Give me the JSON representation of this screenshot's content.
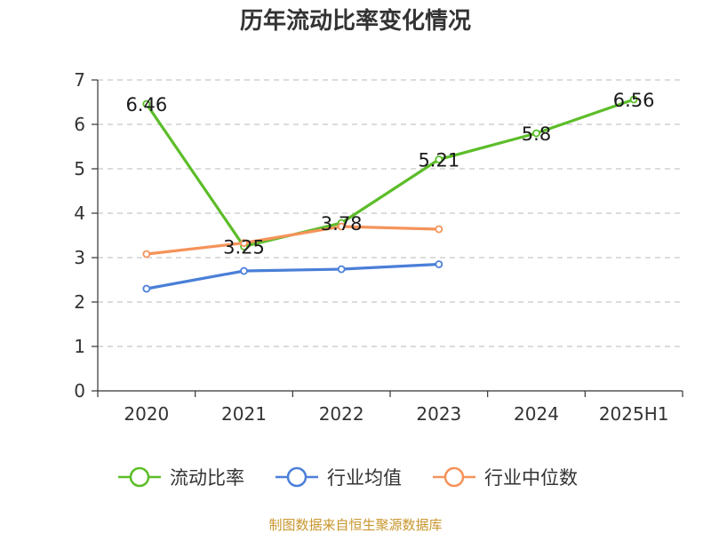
{
  "chart_data": {
    "type": "line",
    "title": "历年流动比率变化情况",
    "categories": [
      "2020",
      "2021",
      "2022",
      "2023",
      "2024",
      "2025H1"
    ],
    "ylim": [
      0,
      7
    ],
    "yticks": [
      "0",
      "1",
      "2",
      "3",
      "4",
      "5",
      "6",
      "7"
    ],
    "grid": true,
    "legend_position": "bottom",
    "series": [
      {
        "name": "流动比率",
        "color": "#5cbd29",
        "values": [
          6.46,
          3.25,
          3.78,
          5.21,
          5.8,
          6.56
        ],
        "data_labels": [
          "6.46",
          "3.25",
          "3.78",
          "5.21",
          "5.8",
          "6.56"
        ]
      },
      {
        "name": "行业均值",
        "color": "#4a7fd8",
        "values": [
          2.3,
          2.7,
          2.74,
          2.85,
          null,
          null
        ]
      },
      {
        "name": "行业中位数",
        "color": "#f5935a",
        "values": [
          3.08,
          3.33,
          3.7,
          3.64,
          null,
          null
        ]
      }
    ]
  },
  "source": {
    "text": "制图数据来自恒生聚源数据库",
    "color": "#c8962e"
  }
}
